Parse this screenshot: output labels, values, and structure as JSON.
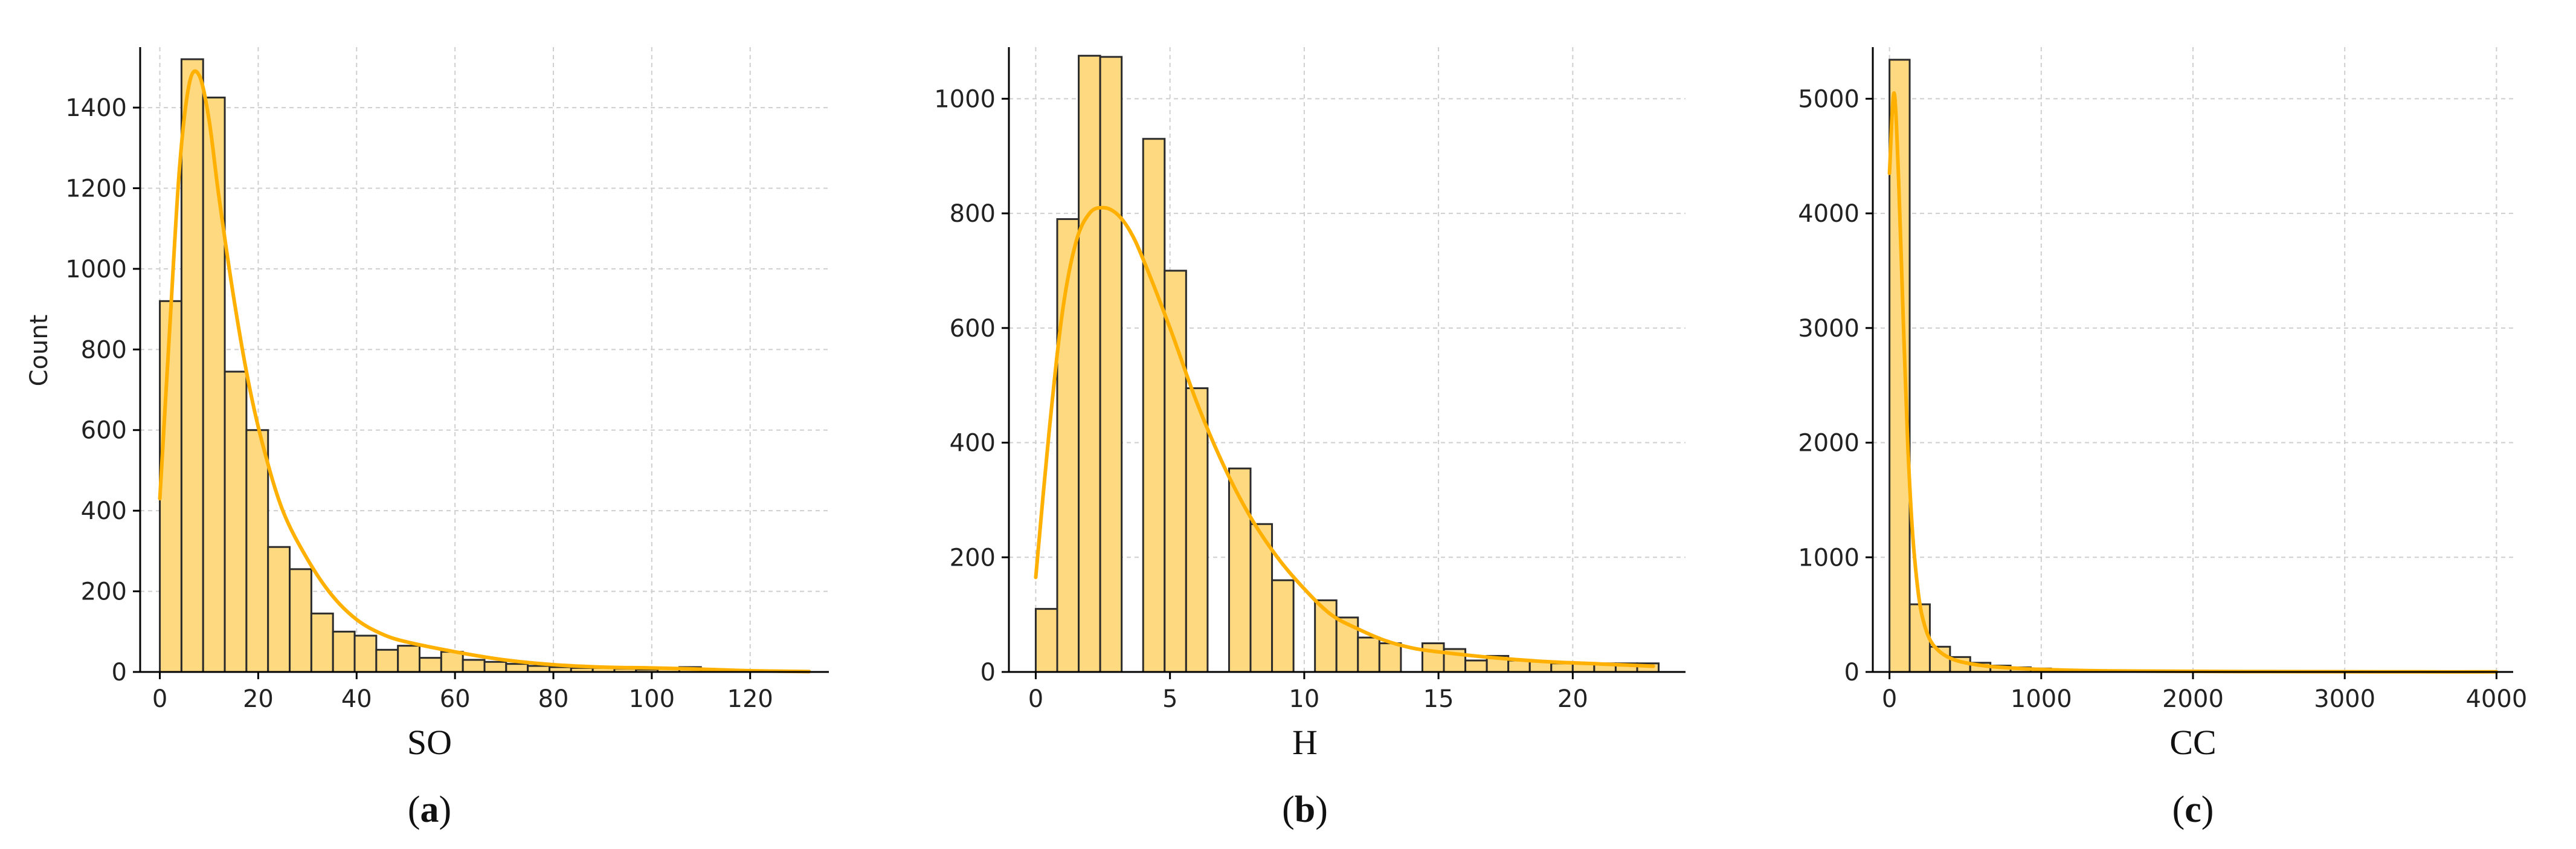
{
  "colors": {
    "bar_fill": "#FFD980",
    "bar_edge": "#2b2b2b",
    "kde_line": "#FFB000",
    "grid": "#cfcfcf",
    "axis": "#000000"
  },
  "chart_data": [
    {
      "type": "bar",
      "panel": "a",
      "xlabel": "SO",
      "ylabel": "Count",
      "xlim": [
        -4,
        136
      ],
      "ylim": [
        0,
        1550
      ],
      "xticks": [
        0,
        20,
        40,
        60,
        80,
        100,
        120
      ],
      "yticks": [
        0,
        200,
        400,
        600,
        800,
        1000,
        1200,
        1400
      ],
      "grid": true,
      "bin_start": 0,
      "bin_width": 4.4,
      "counts": [
        920,
        1520,
        1425,
        745,
        600,
        310,
        255,
        145,
        100,
        90,
        55,
        65,
        35,
        50,
        30,
        25,
        20,
        15,
        12,
        10,
        10,
        8,
        6,
        8,
        12,
        6,
        5,
        4,
        2,
        3
      ],
      "kde": {
        "x": [
          0,
          2,
          4,
          6,
          8,
          10,
          12,
          15,
          18,
          21,
          25,
          30,
          35,
          40,
          45,
          50,
          60,
          70,
          80,
          90,
          100,
          110,
          120,
          132
        ],
        "y": [
          430,
          850,
          1250,
          1460,
          1480,
          1370,
          1180,
          930,
          720,
          560,
          400,
          280,
          190,
          130,
          95,
          75,
          50,
          30,
          18,
          12,
          10,
          7,
          3,
          1
        ]
      }
    },
    {
      "type": "bar",
      "panel": "b",
      "xlabel": "H",
      "ylabel": "",
      "xlim": [
        -1.0,
        24.2
      ],
      "ylim": [
        0,
        1090
      ],
      "xticks": [
        0,
        5,
        10,
        15,
        20
      ],
      "yticks": [
        0,
        200,
        400,
        600,
        800,
        1000
      ],
      "grid": true,
      "bin_start": 0,
      "bin_width": 0.8,
      "counts": [
        110,
        790,
        1075,
        1073,
        0,
        930,
        700,
        495,
        0,
        355,
        258,
        160,
        0,
        125,
        95,
        60,
        50,
        0,
        50,
        40,
        20,
        28,
        20,
        18,
        15,
        15,
        15,
        15,
        15
      ],
      "kde": {
        "x": [
          0,
          0.5,
          1,
          1.5,
          2,
          2.5,
          3,
          3.5,
          4,
          5,
          6,
          7,
          8,
          9,
          10,
          11,
          12,
          13,
          14,
          15,
          17,
          19,
          21,
          23
        ],
        "y": [
          165,
          420,
          630,
          750,
          800,
          810,
          800,
          770,
          720,
          600,
          470,
          360,
          270,
          200,
          145,
          100,
          75,
          55,
          42,
          35,
          25,
          18,
          14,
          10
        ]
      }
    },
    {
      "type": "bar",
      "panel": "c",
      "xlabel": "CC",
      "ylabel": "",
      "xlim": [
        -110,
        4110
      ],
      "ylim": [
        0,
        5450
      ],
      "xticks": [
        0,
        1000,
        2000,
        3000,
        4000
      ],
      "yticks": [
        0,
        1000,
        2000,
        3000,
        4000,
        5000
      ],
      "grid": true,
      "bin_start": 0,
      "bin_width": 133,
      "counts": [
        5340,
        590,
        220,
        130,
        80,
        55,
        40,
        30,
        20,
        15,
        12,
        10,
        8,
        6,
        5,
        4,
        4,
        3,
        3,
        2,
        2,
        2,
        2,
        1,
        1,
        1,
        1,
        1,
        1,
        1
      ],
      "kde": {
        "x": [
          0,
          30,
          60,
          90,
          120,
          150,
          180,
          210,
          260,
          320,
          400,
          500,
          650,
          800,
          1000,
          1300,
          1600,
          2000,
          2500,
          3000,
          3500,
          4000
        ],
        "y": [
          4350,
          5050,
          4300,
          3100,
          2000,
          1250,
          800,
          520,
          300,
          190,
          120,
          80,
          50,
          35,
          22,
          12,
          8,
          5,
          3,
          2,
          1,
          1
        ]
      }
    }
  ],
  "panel_labels": [
    {
      "open": "(",
      "letter": "a",
      "close": ")"
    },
    {
      "open": "(",
      "letter": "b",
      "close": ")"
    },
    {
      "open": "(",
      "letter": "c",
      "close": ")"
    }
  ]
}
